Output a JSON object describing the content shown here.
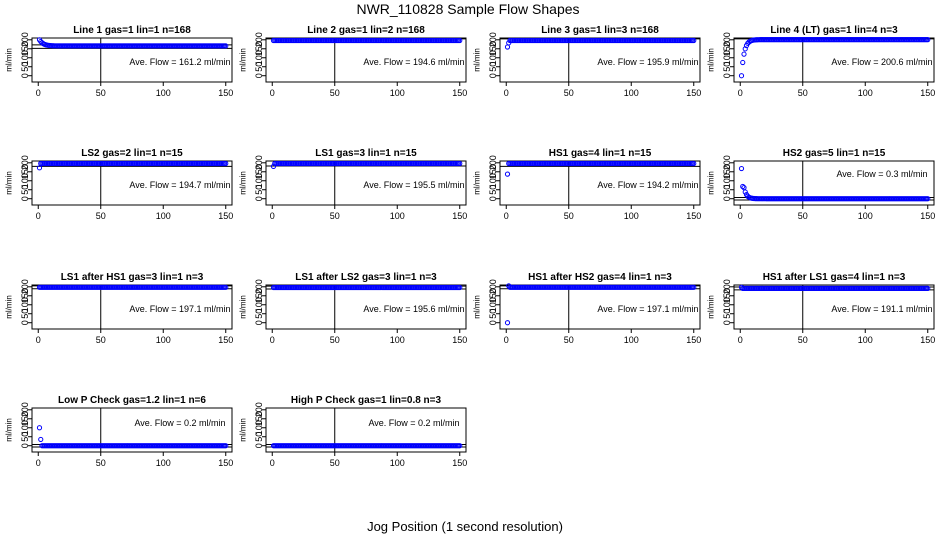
{
  "figure": {
    "title": "NWR_110828  Sample Flow Shapes",
    "xlabel": "Jog Position (1 second resolution)"
  },
  "chart_data": [
    {
      "type": "scatter",
      "title": "Line 1 gas=1 lin=1 n=168",
      "annotation": "Ave. Flow =  161.2  ml/min",
      "ylabel": "ml/min",
      "xlim": [
        0,
        150
      ],
      "ylim": [
        0,
        210
      ],
      "xticks": [
        0,
        50,
        100,
        150
      ],
      "yticks": [
        0,
        50,
        100,
        150,
        200
      ],
      "vline": 50,
      "hlines": [
        152,
        172
      ],
      "profile": {
        "kind": "decay",
        "start": 200,
        "end": 166,
        "tau": 3
      }
    },
    {
      "type": "scatter",
      "title": "Line 2 gas=1 lin=2 n=168",
      "annotation": "Ave. Flow =  194.6  ml/min",
      "ylabel": "ml/min",
      "xlim": [
        0,
        150
      ],
      "ylim": [
        0,
        210
      ],
      "xticks": [
        0,
        50,
        100,
        150
      ],
      "yticks": [
        0,
        50,
        100,
        150,
        200
      ],
      "vline": 50,
      "hlines": [
        205
      ],
      "profile": {
        "kind": "flat",
        "level": 196
      }
    },
    {
      "type": "scatter",
      "title": "Line 3 gas=1 lin=3 n=168",
      "annotation": "Ave. Flow =  195.9  ml/min",
      "ylabel": "ml/min",
      "xlim": [
        0,
        150
      ],
      "ylim": [
        0,
        210
      ],
      "xticks": [
        0,
        50,
        100,
        150
      ],
      "yticks": [
        0,
        50,
        100,
        150,
        200
      ],
      "vline": 50,
      "hlines": [
        205
      ],
      "profile": {
        "kind": "flat",
        "level": 196,
        "first": [
          160,
          183
        ]
      }
    },
    {
      "type": "scatter",
      "title": "Line 4 (LT) gas=1 lin=4 n=3",
      "annotation": "Ave. Flow =  200.6  ml/min",
      "ylabel": "ml/min",
      "xlim": [
        0,
        150
      ],
      "ylim": [
        0,
        210
      ],
      "xticks": [
        0,
        50,
        100,
        150
      ],
      "yticks": [
        0,
        50,
        100,
        150,
        200
      ],
      "vline": 50,
      "hlines": [
        205
      ],
      "profile": {
        "kind": "rise",
        "start": 0,
        "end": 201,
        "tau": 2.2
      }
    },
    {
      "type": "scatter",
      "title": "LS2 gas=2 lin=1 n=15",
      "annotation": "Ave. Flow =  194.7  ml/min",
      "ylabel": "ml/min",
      "xlim": [
        0,
        150
      ],
      "ylim": [
        0,
        210
      ],
      "xticks": [
        0,
        50,
        100,
        150
      ],
      "yticks": [
        0,
        50,
        100,
        150,
        200
      ],
      "vline": 50,
      "hlines": [
        180,
        210
      ],
      "profile": {
        "kind": "flat",
        "level": 196,
        "first": [
          172
        ]
      }
    },
    {
      "type": "scatter",
      "title": "LS1 gas=3 lin=1 n=15",
      "annotation": "Ave. Flow =  195.5  ml/min",
      "ylabel": "ml/min",
      "xlim": [
        0,
        150
      ],
      "ylim": [
        0,
        210
      ],
      "xticks": [
        0,
        50,
        100,
        150
      ],
      "yticks": [
        0,
        50,
        100,
        150,
        200
      ],
      "vline": 50,
      "hlines": [
        182,
        210
      ],
      "profile": {
        "kind": "flat",
        "level": 196,
        "first": [
          180
        ]
      }
    },
    {
      "type": "scatter",
      "title": "HS1 gas=4 lin=1 n=15",
      "annotation": "Ave. Flow =  194.2  ml/min",
      "ylabel": "ml/min",
      "xlim": [
        0,
        150
      ],
      "ylim": [
        0,
        210
      ],
      "xticks": [
        0,
        50,
        100,
        150
      ],
      "yticks": [
        0,
        50,
        100,
        150,
        200
      ],
      "vline": 50,
      "hlines": [
        180,
        210
      ],
      "profile": {
        "kind": "flat",
        "level": 196,
        "first": [
          137
        ]
      }
    },
    {
      "type": "scatter",
      "title": "HS2 gas=5 lin=1 n=15",
      "annotation": "Ave. Flow =  0.3  ml/min",
      "ylabel": "ml/min",
      "xlim": [
        0,
        150
      ],
      "ylim": [
        0,
        210
      ],
      "xticks": [
        0,
        50,
        100,
        150
      ],
      "yticks": [
        0,
        50,
        100,
        150,
        200
      ],
      "vline": 50,
      "hlines": [
        -7,
        7
      ],
      "profile": {
        "kind": "decay",
        "start": 168,
        "end": 0,
        "tau": 2,
        "second": 68
      }
    },
    {
      "type": "scatter",
      "title": "LS1 after HS1 gas=3 lin=1 n=3",
      "annotation": "Ave. Flow =  197.1  ml/min",
      "ylabel": "ml/min",
      "xlim": [
        0,
        150
      ],
      "ylim": [
        0,
        210
      ],
      "xticks": [
        0,
        50,
        100,
        150
      ],
      "yticks": [
        0,
        50,
        100,
        150,
        200
      ],
      "vline": 50,
      "hlines": [
        189,
        205
      ],
      "profile": {
        "kind": "flat",
        "level": 197
      }
    },
    {
      "type": "scatter",
      "title": "LS1 after LS2 gas=3 lin=1 n=3",
      "annotation": "Ave. Flow =  195.6  ml/min",
      "ylabel": "ml/min",
      "xlim": [
        0,
        150
      ],
      "ylim": [
        0,
        210
      ],
      "xticks": [
        0,
        50,
        100,
        150
      ],
      "yticks": [
        0,
        50,
        100,
        150,
        200
      ],
      "vline": 50,
      "hlines": [
        188,
        204
      ],
      "profile": {
        "kind": "flat",
        "level": 196
      }
    },
    {
      "type": "scatter",
      "title": "HS1 after HS2 gas=4 lin=1 n=3",
      "annotation": "Ave. Flow =  197.1  ml/min",
      "ylabel": "ml/min",
      "xlim": [
        0,
        150
      ],
      "ylim": [
        0,
        210
      ],
      "xticks": [
        0,
        50,
        100,
        150
      ],
      "yticks": [
        0,
        50,
        100,
        150,
        200
      ],
      "vline": 50,
      "hlines": [
        189,
        205
      ],
      "profile": {
        "kind": "flat",
        "level": 197,
        "first": [
          0,
          205
        ]
      }
    },
    {
      "type": "scatter",
      "title": "HS1 after LS1 gas=4 lin=1 n=3",
      "annotation": "Ave. Flow =  191.1  ml/min",
      "ylabel": "ml/min",
      "xlim": [
        0,
        150
      ],
      "ylim": [
        0,
        210
      ],
      "xticks": [
        0,
        50,
        100,
        150
      ],
      "yticks": [
        0,
        50,
        100,
        150,
        200
      ],
      "vline": 50,
      "hlines": [
        183,
        199
      ],
      "profile": {
        "kind": "flat",
        "level": 191,
        "first": [
          197
        ]
      }
    },
    {
      "type": "scatter",
      "title": "Low P Check gas=1.2 lin=1 n=6",
      "annotation": "Ave. Flow =  0.2  ml/min",
      "ylabel": "ml/min",
      "xlim": [
        0,
        150
      ],
      "ylim": [
        0,
        210
      ],
      "xticks": [
        0,
        50,
        100,
        150
      ],
      "yticks": [
        0,
        50,
        100,
        150,
        200
      ],
      "vline": 50,
      "hlines": [
        -7,
        7
      ],
      "profile": {
        "kind": "flat",
        "level": 0,
        "first": [
          100,
          35
        ]
      }
    },
    {
      "type": "scatter",
      "title": "High P Check gas=1 lin=0.8 n=3",
      "annotation": "Ave. Flow =  0.2  ml/min",
      "ylabel": "ml/min",
      "xlim": [
        0,
        150
      ],
      "ylim": [
        0,
        210
      ],
      "xticks": [
        0,
        50,
        100,
        150
      ],
      "yticks": [
        0,
        50,
        100,
        150,
        200
      ],
      "vline": 50,
      "hlines": [
        -7,
        7
      ],
      "profile": {
        "kind": "flat",
        "level": 0
      }
    }
  ],
  "colors": {
    "points": "#0000ff",
    "lines": "#000000",
    "background": "#ffffff"
  }
}
